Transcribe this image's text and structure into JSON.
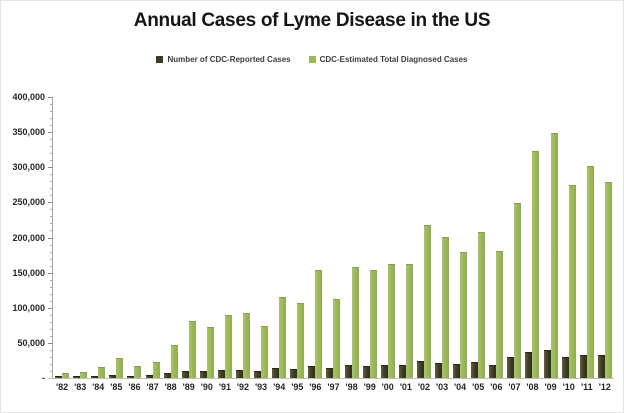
{
  "title": "Annual Cases of Lyme Disease in the US",
  "legend": [
    {
      "label": "Number of CDC-Reported Cases",
      "color": "#3e3a25"
    },
    {
      "label": "CDC-Estimated Total Diagnosed Cases",
      "color": "#9cba5b"
    }
  ],
  "colors": {
    "reported_bar": "#3e3a25",
    "estimated_bar": "#9cba5b",
    "axis_line": "#a6a6a6",
    "baseline": "#bfbfbf",
    "label_text": "#262626"
  },
  "chart_data": {
    "type": "bar",
    "title": "Annual Cases of Lyme Disease in the US",
    "xlabel": "",
    "ylabel": "",
    "categories": [
      "'82",
      "'83",
      "'84",
      "'85",
      "'86",
      "'87",
      "'88",
      "'89",
      "'90",
      "'91",
      "'92",
      "'93",
      "'94",
      "'95",
      "'96",
      "'97",
      "'98",
      "'99",
      "'00",
      "'01",
      "'02",
      "'03",
      "'04",
      "'05",
      "'06",
      "'07",
      "'08",
      "'09",
      "'10",
      "'11",
      "'12"
    ],
    "series": [
      {
        "name": "Number of CDC-Reported Cases",
        "color": "#3e3a25",
        "values": [
          500,
          600,
          1500,
          2500,
          1500,
          2500,
          5000,
          9000,
          8000,
          9500,
          10000,
          8500,
          13000,
          12000,
          16000,
          13000,
          16500,
          16000,
          17500,
          17000,
          23000,
          20000,
          18000,
          21500,
          17500,
          28000,
          35000,
          38000,
          29000,
          32000,
          31000
        ]
      },
      {
        "name": "CDC-Estimated Total Diagnosed Cases",
        "color": "#9cba5b",
        "values": [
          5000,
          7000,
          14000,
          27000,
          15000,
          22000,
          45000,
          80000,
          71000,
          88000,
          91000,
          73000,
          114000,
          105000,
          153000,
          111000,
          156000,
          153000,
          161000,
          161000,
          216000,
          199000,
          178000,
          207000,
          180000,
          248000,
          322000,
          348000,
          273000,
          300000,
          278000
        ]
      }
    ],
    "ylim": [
      0,
      400000
    ],
    "ytick_interval": 50000,
    "ytick_minor_interval": 10000,
    "ytick_labels_top_to_bottom": [
      "400,000",
      "350,000",
      "300,000",
      "250,000",
      "200,000",
      "150,000",
      "100,000",
      "50,000",
      "-"
    ],
    "grid": false,
    "legend_position": "top-center"
  }
}
